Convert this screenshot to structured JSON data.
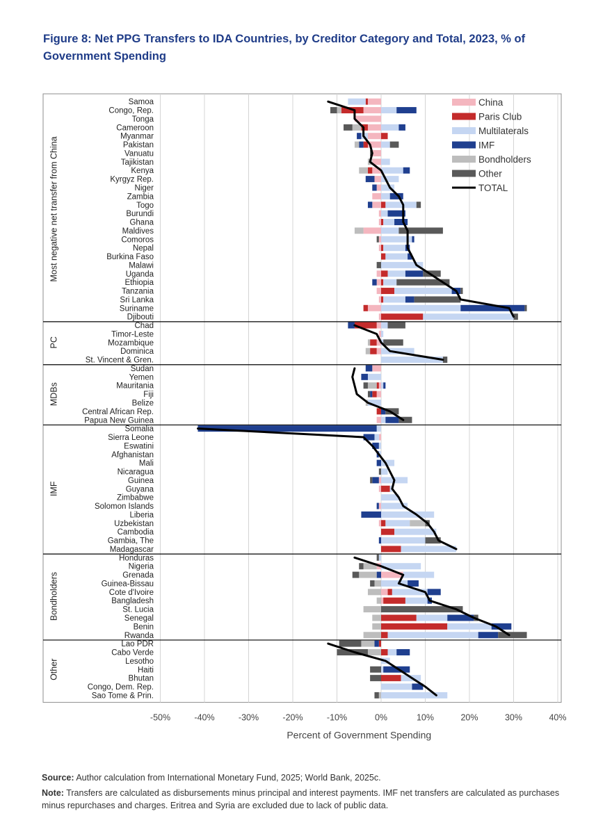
{
  "figure": {
    "title": "Figure 8:  Net PPG Transfers to IDA Countries, by Creditor Category and Total, 2023, % of Government Spending",
    "source_label": "Source:",
    "source_text": " Author calculation from International Monetary Fund, 2025; World Bank, 2025c.",
    "note_label": "Note:",
    "note_text": " Transfers are calculated as disbursements minus principal and interest payments. IMF net transfers are calculated as purchases minus repurchases and charges. Eritrea and Syria are excluded due to lack of public data."
  },
  "colors": {
    "China": "#f4b6bf",
    "Paris Club": "#c42b2b",
    "Multilaterals": "#c5d6f2",
    "IMF": "#1f3f8f",
    "Bondholders": "#bdbdbd",
    "Other": "#595959",
    "TOTAL": "#000000"
  },
  "chart_data": {
    "type": "bar",
    "orientation": "horizontal",
    "stacked": true,
    "xlabel": "Percent of Government Spending",
    "ylabel": "",
    "xlim": [
      -50,
      40
    ],
    "xticks": [
      "-50%",
      "-40%",
      "-30%",
      "-20%",
      "-10%",
      "0%",
      "10%",
      "20%",
      "30%",
      "40%"
    ],
    "grid": "vertical",
    "legend_position": "top-right",
    "series_order": [
      "China",
      "Paris Club",
      "Multilaterals",
      "IMF",
      "Bondholders",
      "Other"
    ],
    "total_series_name": "TOTAL",
    "groups": [
      {
        "name": "Most negative net transfer from China",
        "countries": [
          {
            "name": "Samoa",
            "China": -3,
            "Paris Club": -0.5,
            "Multilaterals": -4,
            "IMF": 0,
            "Bondholders": 0,
            "Other": 0,
            "total": -12
          },
          {
            "name": "Congo, Rep.",
            "China": -4,
            "Paris Club": -5,
            "Multilaterals": 3.5,
            "IMF": 4.5,
            "Bondholders": -1,
            "Other": -1.5,
            "total": -6
          },
          {
            "name": "Tonga",
            "China": -6,
            "Paris Club": 0,
            "Multilaterals": 0,
            "IMF": 0,
            "Bondholders": 0,
            "Other": 0,
            "total": -6
          },
          {
            "name": "Cameroon",
            "China": -3,
            "Paris Club": -1.5,
            "Multilaterals": 4,
            "IMF": 1.5,
            "Bondholders": -2,
            "Other": -2,
            "total": -4
          },
          {
            "name": "Myanmar",
            "China": -3,
            "Paris Club": 1.5,
            "Multilaterals": -1.5,
            "IMF": -1,
            "Bondholders": 0,
            "Other": 0,
            "total": -4
          },
          {
            "name": "Pakistan",
            "China": -3,
            "Paris Club": -1,
            "Multilaterals": 2,
            "IMF": -1,
            "Bondholders": -1,
            "Other": 2,
            "total": -2.5
          },
          {
            "name": "Vanuatu",
            "China": -2,
            "Paris Club": 0,
            "Multilaterals": 0,
            "IMF": 0,
            "Bondholders": 0,
            "Other": -0.5,
            "total": -2
          },
          {
            "name": "Tajikistan",
            "China": -2,
            "Paris Club": 0,
            "Multilaterals": 2,
            "IMF": 0,
            "Bondholders": -1,
            "Other": 0,
            "total": -2.5
          },
          {
            "name": "Kenya",
            "China": -2,
            "Paris Club": -1,
            "Multilaterals": 5,
            "IMF": 1.5,
            "Bondholders": -2,
            "Other": 0,
            "total": 0
          },
          {
            "name": "Kyrgyz Rep.",
            "China": -1.5,
            "Paris Club": 0,
            "Multilaterals": 4,
            "IMF": -2,
            "Bondholders": 0,
            "Other": 0,
            "total": 1
          },
          {
            "name": "Niger",
            "China": -1,
            "Paris Club": 0,
            "Multilaterals": 3,
            "IMF": -1,
            "Bondholders": 0,
            "Other": 0,
            "total": 2
          },
          {
            "name": "Zambia",
            "China": -2,
            "Paris Club": 0,
            "Multilaterals": 2,
            "IMF": 3,
            "Bondholders": 0,
            "Other": 0,
            "total": 4
          },
          {
            "name": "Togo",
            "China": -2,
            "Paris Club": 1,
            "Multilaterals": 7,
            "IMF": -1,
            "Bondholders": 0,
            "Other": 1,
            "total": 5
          },
          {
            "name": "Burundi",
            "China": -0.5,
            "Paris Club": 0,
            "Multilaterals": 1.5,
            "IMF": 4,
            "Bondholders": 0,
            "Other": 0,
            "total": 5
          },
          {
            "name": "Ghana",
            "China": -0.5,
            "Paris Club": 0.5,
            "Multilaterals": 2.5,
            "IMF": 3,
            "Bondholders": 0,
            "Other": 0,
            "total": 5
          },
          {
            "name": "Maldives",
            "China": -4,
            "Paris Club": 0,
            "Multilaterals": 4,
            "IMF": 0,
            "Bondholders": -2,
            "Other": 10,
            "total": 6
          },
          {
            "name": "Comoros",
            "China": -0.5,
            "Paris Club": 0,
            "Multilaterals": 7,
            "IMF": 0.5,
            "Bondholders": 0,
            "Other": -0.5,
            "total": 6
          },
          {
            "name": "Nepal",
            "China": -0.5,
            "Paris Club": 0.5,
            "Multilaterals": 5,
            "IMF": 1,
            "Bondholders": 0,
            "Other": 0,
            "total": 6
          },
          {
            "name": "Burkina Faso",
            "China": 0,
            "Paris Club": 1,
            "Multilaterals": 5,
            "IMF": 1,
            "Bondholders": 0,
            "Other": 0,
            "total": 7
          },
          {
            "name": "Malawi",
            "China": 0,
            "Paris Club": 0,
            "Multilaterals": 9.5,
            "IMF": 0,
            "Bondholders": 0,
            "Other": -1,
            "total": 8
          },
          {
            "name": "Uganda",
            "China": -1,
            "Paris Club": 1.5,
            "Multilaterals": 4,
            "IMF": 4,
            "Bondholders": 0,
            "Other": 4,
            "total": 11
          },
          {
            "name": "Ethiopia",
            "China": -1,
            "Paris Club": 0.5,
            "Multilaterals": 3,
            "IMF": -1,
            "Bondholders": 0,
            "Other": 12,
            "total": 14
          },
          {
            "name": "Tanzania",
            "China": -1,
            "Paris Club": 3,
            "Multilaterals": 13,
            "IMF": 2,
            "Bondholders": 0,
            "Other": 0.5,
            "total": 17
          },
          {
            "name": "Sri Lanka",
            "China": -0.5,
            "Paris Club": 0.5,
            "Multilaterals": 5,
            "IMF": 2,
            "Bondholders": 0,
            "Other": 10.5,
            "total": 18
          },
          {
            "name": "Suriname",
            "China": -3,
            "Paris Club": -1,
            "Multilaterals": 18,
            "IMF": 14.5,
            "Bondholders": 0,
            "Other": 0.5,
            "total": 29
          },
          {
            "name": "Djibouti",
            "China": -0.5,
            "Paris Club": 9.5,
            "Multilaterals": 20.5,
            "IMF": 0,
            "Bondholders": 0,
            "Other": 1,
            "total": 30
          }
        ]
      },
      {
        "name": "PC",
        "countries": [
          {
            "name": "Chad",
            "China": -1,
            "Paris Club": -5,
            "Multilaterals": 1.5,
            "IMF": -1.5,
            "Bondholders": 0,
            "Other": 4,
            "total": -6
          },
          {
            "name": "Timor-Leste",
            "China": -0.5,
            "Paris Club": 0,
            "Multilaterals": 0.5,
            "IMF": 0,
            "Bondholders": 0,
            "Other": 0,
            "total": -1
          },
          {
            "name": "Mozambique",
            "China": -1,
            "Paris Club": -1.5,
            "Multilaterals": 0.5,
            "IMF": 0,
            "Bondholders": -0.5,
            "Other": 4.5,
            "total": 0
          },
          {
            "name": "Dominica",
            "China": -1,
            "Paris Club": -1.5,
            "Multilaterals": 7.5,
            "IMF": 0,
            "Bondholders": -1,
            "Other": 0,
            "total": 2
          },
          {
            "name": "St. Vincent & Gren.",
            "China": 0,
            "Paris Club": 0,
            "Multilaterals": 14,
            "IMF": 0,
            "Bondholders": 0,
            "Other": 1,
            "total": 14
          }
        ]
      },
      {
        "name": "MDBs",
        "countries": [
          {
            "name": "Sudan",
            "China": -2,
            "Paris Club": 0,
            "Multilaterals": 0,
            "IMF": -1.5,
            "Bondholders": 0,
            "Other": 0,
            "total": -6
          },
          {
            "name": "Yemen",
            "China": 0,
            "Paris Club": 0,
            "Multilaterals": -3,
            "IMF": -1.5,
            "Bondholders": 0,
            "Other": 0,
            "total": -6.5
          },
          {
            "name": "Mauritania",
            "China": -0.5,
            "Paris Club": -0.5,
            "Multilaterals": 0.5,
            "IMF": 0.5,
            "Bondholders": -2,
            "Other": -1,
            "total": -6
          },
          {
            "name": "Fiji",
            "China": -1,
            "Paris Club": -1,
            "Multilaterals": 0,
            "IMF": -0.5,
            "Bondholders": 0,
            "Other": -0.5,
            "total": -5.5
          },
          {
            "name": "Belize",
            "China": 0,
            "Paris Club": 0,
            "Multilaterals": -3,
            "IMF": 0,
            "Bondholders": -0.5,
            "Other": 0,
            "total": -3
          },
          {
            "name": "Central African Rep.",
            "China": 0,
            "Paris Club": -1,
            "Multilaterals": 0,
            "IMF": 1,
            "Bondholders": 0,
            "Other": 3,
            "total": 2
          },
          {
            "name": "Papua New Guinea",
            "China": -1,
            "Paris Club": 0,
            "Multilaterals": 1,
            "IMF": 3,
            "Bondholders": 0,
            "Other": 3,
            "total": 5
          }
        ]
      },
      {
        "name": "IMF",
        "countries": [
          {
            "name": "Somalia",
            "China": 0,
            "Paris Club": 0,
            "Multilaterals": -1,
            "IMF": -40.5,
            "Bondholders": 0,
            "Other": 0,
            "total": -41.5
          },
          {
            "name": "Sierra Leone",
            "China": -0.5,
            "Paris Club": 0,
            "Multilaterals": -1,
            "IMF": -2.5,
            "Bondholders": 0,
            "Other": 0,
            "total": -4
          },
          {
            "name": "Eswatini",
            "China": 0,
            "Paris Club": 0,
            "Multilaterals": -0.5,
            "IMF": -1.5,
            "Bondholders": 0,
            "Other": 0,
            "total": -2
          },
          {
            "name": "Afghanistan",
            "China": 0,
            "Paris Club": 0,
            "Multilaterals": -0.5,
            "IMF": -0.5,
            "Bondholders": 0,
            "Other": 0,
            "total": -0.5
          },
          {
            "name": "Mali",
            "China": 0,
            "Paris Club": 0,
            "Multilaterals": 3,
            "IMF": -1,
            "Bondholders": 0,
            "Other": 0,
            "total": 1
          },
          {
            "name": "Nicaragua",
            "China": 0,
            "Paris Club": 0,
            "Multilaterals": 1.5,
            "IMF": 0,
            "Bondholders": 0,
            "Other": -0.5,
            "total": 2
          },
          {
            "name": "Guinea",
            "China": -0.5,
            "Paris Club": 0,
            "Multilaterals": 6,
            "IMF": -1.5,
            "Bondholders": 0,
            "Other": -0.5,
            "total": 3
          },
          {
            "name": "Guyana",
            "China": -0.5,
            "Paris Club": 2,
            "Multilaterals": 0.5,
            "IMF": 0,
            "Bondholders": 0,
            "Other": 0,
            "total": 2.5
          },
          {
            "name": "Zimbabwe",
            "China": 0,
            "Paris Club": 0,
            "Multilaterals": 4,
            "IMF": 0,
            "Bondholders": 0,
            "Other": 0,
            "total": 4
          },
          {
            "name": "Solomon Islands",
            "China": -0.5,
            "Paris Club": 0,
            "Multilaterals": 6,
            "IMF": -0.5,
            "Bondholders": 0,
            "Other": 0,
            "total": 5
          },
          {
            "name": "Liberia",
            "China": 0,
            "Paris Club": 0,
            "Multilaterals": 12,
            "IMF": -4.5,
            "Bondholders": 0,
            "Other": 0,
            "total": 8
          },
          {
            "name": "Uzbekistan",
            "China": -0.5,
            "Paris Club": 1,
            "Multilaterals": 5.5,
            "IMF": 0,
            "Bondholders": 3.5,
            "Other": 1,
            "total": 10.5
          },
          {
            "name": "Cambodia",
            "China": 0,
            "Paris Club": 3,
            "Multilaterals": 9.5,
            "IMF": 0,
            "Bondholders": 0,
            "Other": 0,
            "total": 12
          },
          {
            "name": "Gambia, The",
            "China": 0,
            "Paris Club": 0,
            "Multilaterals": 10,
            "IMF": -0.5,
            "Bondholders": 0,
            "Other": 3.5,
            "total": 13
          },
          {
            "name": "Madagascar",
            "China": 0,
            "Paris Club": 4.5,
            "Multilaterals": 12.5,
            "IMF": 0,
            "Bondholders": 0,
            "Other": 0,
            "total": 17
          }
        ]
      },
      {
        "name": "Bondholders",
        "countries": [
          {
            "name": "Honduras",
            "China": 0,
            "Paris Club": 0,
            "Multilaterals": -0.5,
            "IMF": 0,
            "Bondholders": 0,
            "Other": -0.5,
            "total": -6
          },
          {
            "name": "Nigeria",
            "China": -1,
            "Paris Club": 0,
            "Multilaterals": 9,
            "IMF": 0,
            "Bondholders": -3,
            "Other": -1,
            "total": 0
          },
          {
            "name": "Grenada",
            "China": 5,
            "Paris Club": 0,
            "Multilaterals": 7,
            "IMF": -1,
            "Bondholders": -4,
            "Other": -1.5,
            "total": 5
          },
          {
            "name": "Guinea-Bissau",
            "China": 0,
            "Paris Club": 0,
            "Multilaterals": 6,
            "IMF": 2.5,
            "Bondholders": -1.5,
            "Other": -1,
            "total": 4
          },
          {
            "name": "Cote d'Ivoire",
            "China": 1.5,
            "Paris Club": 1,
            "Multilaterals": 8,
            "IMF": 3,
            "Bondholders": -3,
            "Other": 0,
            "total": 10
          },
          {
            "name": "Bangladesh",
            "China": 0.5,
            "Paris Club": 5,
            "Multilaterals": 5,
            "IMF": 1,
            "Bondholders": -1,
            "Other": 0,
            "total": 11
          },
          {
            "name": "St. Lucia",
            "China": 0,
            "Paris Club": 0,
            "Multilaterals": 0,
            "IMF": 0,
            "Bondholders": -4,
            "Other": 18.5,
            "total": 17
          },
          {
            "name": "Senegal",
            "China": 0,
            "Paris Club": 8,
            "Multilaterals": 7,
            "IMF": 6,
            "Bondholders": -2,
            "Other": 1,
            "total": 21
          },
          {
            "name": "Benin",
            "China": 0,
            "Paris Club": 15,
            "Multilaterals": 10,
            "IMF": 4.5,
            "Bondholders": -2,
            "Other": 0,
            "total": 26
          },
          {
            "name": "Rwanda",
            "China": 0,
            "Paris Club": 1.5,
            "Multilaterals": 20.5,
            "IMF": 4.5,
            "Bondholders": -4,
            "Other": 6.5,
            "total": 29
          }
        ]
      },
      {
        "name": "Other",
        "countries": [
          {
            "name": "Lao PDR",
            "China": 0,
            "Paris Club": -0.5,
            "Multilaterals": 0,
            "IMF": -1,
            "Bondholders": -3,
            "Other": -5,
            "total": -12
          },
          {
            "name": "Cabo Verde",
            "China": 0,
            "Paris Club": 1.5,
            "Multilaterals": 2,
            "IMF": 3,
            "Bondholders": -3,
            "Other": -7,
            "total": -6
          },
          {
            "name": "Lesotho",
            "China": 0,
            "Paris Club": 0,
            "Multilaterals": 2,
            "IMF": 0,
            "Bondholders": 0,
            "Other": 0,
            "total": 1
          },
          {
            "name": "Haiti",
            "China": 0,
            "Paris Club": 0,
            "Multilaterals": 0.5,
            "IMF": 6,
            "Bondholders": 0,
            "Other": -2.5,
            "total": 4
          },
          {
            "name": "Bhutan",
            "China": 0,
            "Paris Club": 4.5,
            "Multilaterals": 4.5,
            "IMF": 0,
            "Bondholders": 0,
            "Other": -2.5,
            "total": 7
          },
          {
            "name": "Congo, Dem. Rep.",
            "China": 0,
            "Paris Club": 0,
            "Multilaterals": 7,
            "IMF": 2.5,
            "Bondholders": 0,
            "Other": 0,
            "total": 10
          },
          {
            "name": "Sao Tome & Prin.",
            "China": 0,
            "Paris Club": 0,
            "Multilaterals": 15,
            "IMF": 0,
            "Bondholders": -0.5,
            "Other": -1,
            "total": 12.5
          }
        ]
      }
    ]
  }
}
